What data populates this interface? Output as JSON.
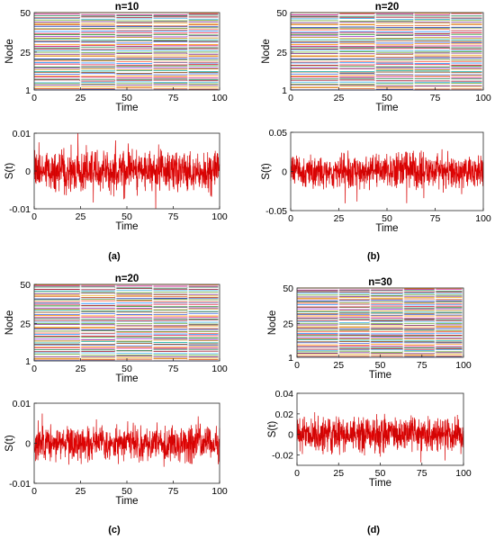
{
  "chart_data": [
    {
      "panel": "a",
      "caption": "(a)",
      "top": {
        "type": "line",
        "title": "n=10",
        "xlabel": "Time",
        "ylabel": "Node",
        "xlim": [
          0,
          100
        ],
        "ylim": [
          1,
          50
        ],
        "xticks": [
          "0",
          "25",
          "50",
          "75",
          "100"
        ],
        "yticks": [
          "1",
          "25",
          "50"
        ],
        "series_count": 50,
        "regime_boundaries": [
          25,
          44,
          64,
          83
        ]
      },
      "bottom": {
        "type": "line",
        "xlabel": "Time",
        "ylabel": "S(t)",
        "xlim": [
          0,
          100
        ],
        "ylim": [
          -0.01,
          0.01
        ],
        "xticks": [
          "0",
          "25",
          "50",
          "75",
          "100"
        ],
        "yticks": [
          "0.01",
          "0",
          "-0.01"
        ],
        "series_color": "#ff0000",
        "noise_amplitude": 0.005
      }
    },
    {
      "panel": "b",
      "caption": "(b)",
      "top": {
        "type": "line",
        "title": "n=20",
        "xlabel": "Time",
        "ylabel": "Node",
        "xlim": [
          0,
          100
        ],
        "ylim": [
          1,
          50
        ],
        "xticks": [
          "0",
          "25",
          "50",
          "75",
          "100"
        ],
        "yticks": [
          "1",
          "25",
          "50"
        ],
        "series_count": 50,
        "regime_boundaries": [
          25,
          44,
          64,
          83
        ]
      },
      "bottom": {
        "type": "line",
        "xlabel": "Time",
        "ylabel": "S(t)",
        "xlim": [
          0,
          100
        ],
        "ylim": [
          -0.05,
          0.05
        ],
        "xticks": [
          "0",
          "25",
          "50",
          "75",
          "100"
        ],
        "yticks": [
          "0.05",
          "0",
          "-0.05"
        ],
        "series_color": "#ff0000",
        "noise_amplitude": 0.02
      }
    },
    {
      "panel": "c",
      "caption": "(c)",
      "top": {
        "type": "line",
        "title": "n=20",
        "xlabel": "Time",
        "ylabel": "Node",
        "xlim": [
          0,
          100
        ],
        "ylim": [
          1,
          50
        ],
        "xticks": [
          "0",
          "25",
          "50",
          "75",
          "100"
        ],
        "yticks": [
          "1",
          "25",
          "50"
        ],
        "series_count": 50,
        "regime_boundaries": [
          25,
          44,
          64,
          83
        ]
      },
      "bottom": {
        "type": "line",
        "xlabel": "Time",
        "ylabel": "S(t)",
        "xlim": [
          0,
          100
        ],
        "ylim": [
          -0.01,
          0.01
        ],
        "xticks": [
          "0",
          "25",
          "50",
          "75",
          "100"
        ],
        "yticks": [
          "0.01",
          "0",
          "-0.01"
        ],
        "series_color": "#ff0000",
        "noise_amplitude": 0.004
      }
    },
    {
      "panel": "d",
      "caption": "(d)",
      "top": {
        "type": "line",
        "title": "n=30",
        "xlabel": "Time",
        "ylabel": "Node",
        "xlim": [
          0,
          100
        ],
        "ylim": [
          1,
          50
        ],
        "xticks": [
          "0",
          "25",
          "50",
          "75",
          "100"
        ],
        "yticks": [
          "1",
          "25",
          "50"
        ],
        "series_count": 50,
        "regime_boundaries": [
          25,
          44,
          64,
          83
        ]
      },
      "bottom": {
        "type": "line",
        "xlabel": "Time",
        "ylabel": "S(t)",
        "xlim": [
          0,
          100
        ],
        "ylim": [
          -0.03,
          0.04
        ],
        "xticks": [
          "0",
          "25",
          "50",
          "75",
          "100"
        ],
        "yticks": [
          "0.04",
          "0.02",
          "0",
          "-0.02"
        ],
        "series_color": "#ff0000",
        "noise_amplitude": 0.015
      }
    }
  ]
}
